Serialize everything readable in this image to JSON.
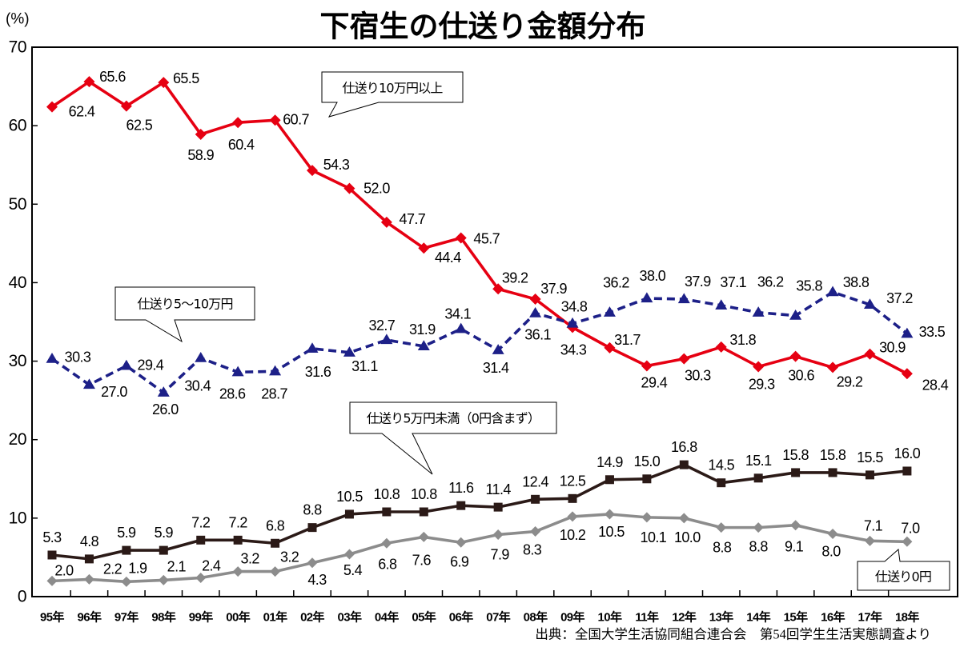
{
  "page": {
    "title": "下宿生の仕送り金額分布",
    "unit_label": "(%)",
    "source": "出典：全国大学生活協同組合連合会　第54回学生生活実態調査より"
  },
  "chart_data": {
    "type": "line",
    "title": "下宿生の仕送り金額分布",
    "xlabel": "",
    "ylabel": "(%)",
    "ylim": [
      0,
      70
    ],
    "yticks": [
      0,
      10,
      20,
      30,
      40,
      50,
      60,
      70
    ],
    "grid": false,
    "legend": "none (inline callout labels)",
    "categories": [
      "95年",
      "96年",
      "97年",
      "98年",
      "99年",
      "00年",
      "01年",
      "02年",
      "03年",
      "04年",
      "05年",
      "06年",
      "07年",
      "08年",
      "09年",
      "10年",
      "11年",
      "12年",
      "13年",
      "14年",
      "15年",
      "16年",
      "17年",
      "18年"
    ],
    "series": [
      {
        "name": "仕送り10万円以上",
        "color": "#e60012",
        "marker": "diamond",
        "line_style": "solid",
        "values": [
          62.4,
          65.6,
          62.5,
          65.5,
          58.9,
          60.4,
          60.7,
          54.3,
          52.0,
          47.7,
          44.4,
          45.7,
          39.2,
          37.9,
          34.3,
          31.7,
          29.4,
          30.3,
          31.8,
          29.3,
          30.6,
          29.2,
          30.9,
          28.4
        ]
      },
      {
        "name": "仕送り5～10万円",
        "color": "#1d2088",
        "marker": "triangle",
        "line_style": "dashed",
        "values": [
          30.3,
          27.0,
          29.4,
          26.0,
          30.4,
          28.6,
          28.7,
          31.6,
          31.1,
          32.7,
          31.9,
          34.1,
          31.4,
          36.1,
          34.8,
          36.2,
          38.0,
          37.9,
          37.1,
          36.2,
          35.8,
          38.8,
          37.2,
          33.5
        ]
      },
      {
        "name": "仕送り5万円未満（0円含まず）",
        "color": "#2b1a17",
        "marker": "square",
        "line_style": "solid",
        "values": [
          5.3,
          4.8,
          5.9,
          5.9,
          7.2,
          7.2,
          6.8,
          8.8,
          10.5,
          10.8,
          10.8,
          11.6,
          11.4,
          12.4,
          12.5,
          14.9,
          15.0,
          16.8,
          14.5,
          15.1,
          15.8,
          15.8,
          15.5,
          16.0
        ]
      },
      {
        "name": "仕送り0円",
        "color": "#8c8c8c",
        "marker": "diamond",
        "line_style": "solid",
        "values": [
          2.0,
          2.2,
          1.9,
          2.1,
          2.4,
          3.2,
          3.2,
          4.3,
          5.4,
          6.8,
          7.6,
          6.9,
          7.9,
          8.3,
          10.2,
          10.5,
          10.1,
          10.0,
          8.8,
          8.8,
          9.1,
          8.0,
          7.1,
          7.0
        ]
      }
    ],
    "source": "出典：全国大学生活協同組合連合会　第54回学生生活実態調査より"
  }
}
